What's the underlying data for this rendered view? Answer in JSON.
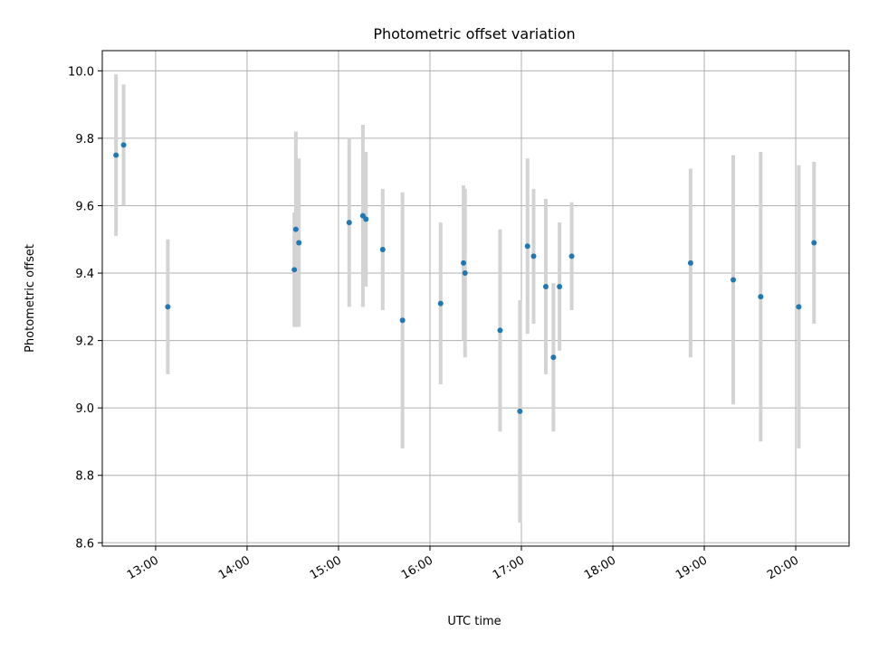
{
  "chart_data": {
    "type": "scatter",
    "title": "Photometric offset variation",
    "xlabel": "UTC time",
    "ylabel": "Photometric offset",
    "xlim": [
      "12:25",
      "20:35"
    ],
    "ylim": [
      8.59,
      10.06
    ],
    "x_ticks": [
      "13:00",
      "14:00",
      "15:00",
      "16:00",
      "17:00",
      "18:00",
      "19:00",
      "20:00"
    ],
    "y_ticks": [
      8.6,
      8.8,
      9.0,
      9.2,
      9.4,
      9.6,
      9.8,
      10.0
    ],
    "y_tick_labels": [
      "8.6",
      "8.8",
      "9.0",
      "9.2",
      "9.4",
      "9.6",
      "9.8",
      "10.0"
    ],
    "grid": true,
    "colors": {
      "points": "#1f77b4",
      "error_bars": "#d3d3d3"
    },
    "points": [
      {
        "t": "12:34",
        "y": 9.75,
        "err": 0.24
      },
      {
        "t": "12:39",
        "y": 9.78,
        "err": 0.18
      },
      {
        "t": "13:08",
        "y": 9.3,
        "err": 0.2
      },
      {
        "t": "14:31",
        "y": 9.41,
        "err": 0.17
      },
      {
        "t": "14:32",
        "y": 9.53,
        "err": 0.29
      },
      {
        "t": "14:34",
        "y": 9.49,
        "err": 0.25
      },
      {
        "t": "15:07",
        "y": 9.55,
        "err": 0.25
      },
      {
        "t": "15:16",
        "y": 9.57,
        "err": 0.27
      },
      {
        "t": "15:18",
        "y": 9.56,
        "err": 0.2
      },
      {
        "t": "15:29",
        "y": 9.47,
        "err": 0.18
      },
      {
        "t": "15:42",
        "y": 9.26,
        "err": 0.38
      },
      {
        "t": "16:07",
        "y": 9.31,
        "err": 0.24
      },
      {
        "t": "16:22",
        "y": 9.43,
        "err": 0.23
      },
      {
        "t": "16:23",
        "y": 9.4,
        "err": 0.25
      },
      {
        "t": "16:46",
        "y": 9.23,
        "err": 0.3
      },
      {
        "t": "16:59",
        "y": 8.99,
        "err": 0.33
      },
      {
        "t": "17:04",
        "y": 9.48,
        "err": 0.26
      },
      {
        "t": "17:08",
        "y": 9.45,
        "err": 0.2
      },
      {
        "t": "17:16",
        "y": 9.36,
        "err": 0.26
      },
      {
        "t": "17:21",
        "y": 9.15,
        "err": 0.22
      },
      {
        "t": "17:25",
        "y": 9.36,
        "err": 0.19
      },
      {
        "t": "17:33",
        "y": 9.45,
        "err": 0.16
      },
      {
        "t": "18:51",
        "y": 9.43,
        "err": 0.28
      },
      {
        "t": "19:19",
        "y": 9.38,
        "err": 0.37
      },
      {
        "t": "19:37",
        "y": 9.33,
        "err": 0.43
      },
      {
        "t": "20:02",
        "y": 9.3,
        "err": 0.42
      },
      {
        "t": "20:12",
        "y": 9.49,
        "err": 0.24
      }
    ]
  }
}
